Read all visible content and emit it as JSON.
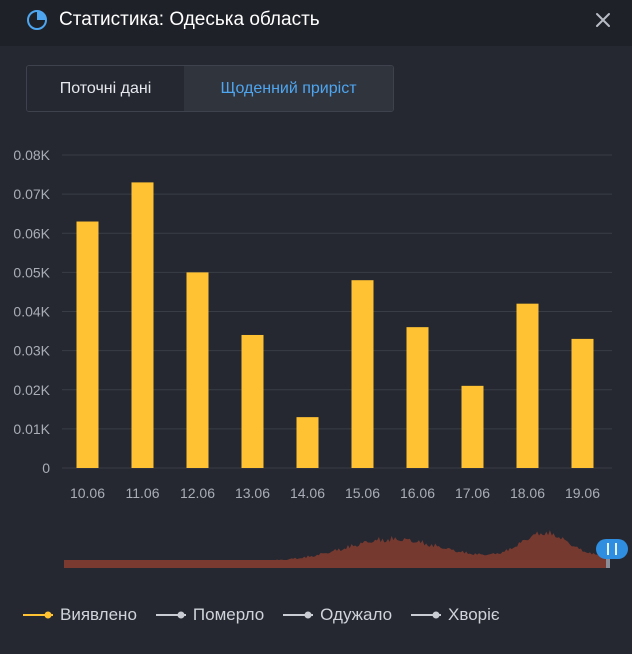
{
  "header": {
    "title": "Статистика: Одеська область",
    "icon": "pie-chart-icon",
    "close_icon": "close-icon",
    "accent": "#4ea6f0"
  },
  "tabs": [
    {
      "label": "Поточні дані",
      "active": false
    },
    {
      "label": "Щоденний приріст",
      "active": true
    }
  ],
  "chart_data": {
    "type": "bar",
    "title": "",
    "xlabel": "",
    "ylabel": "",
    "categories": [
      "10.06",
      "11.06",
      "12.06",
      "13.06",
      "14.06",
      "15.06",
      "16.06",
      "17.06",
      "18.06",
      "19.06"
    ],
    "series": [
      {
        "name": "Виявлено",
        "values": [
          0.063,
          0.073,
          0.05,
          0.034,
          0.013,
          0.048,
          0.036,
          0.021,
          0.042,
          0.033
        ],
        "color": "#ffc233"
      }
    ],
    "yticks": [
      "0",
      "0.01K",
      "0.02K",
      "0.03K",
      "0.04K",
      "0.05K",
      "0.06K",
      "0.07K",
      "0.08K"
    ],
    "ylim": [
      0,
      0.08
    ],
    "grid": true,
    "legend_position": "bottom-left",
    "overview_color": "#7a3a30"
  },
  "legend": [
    {
      "label": "Виявлено",
      "color": "#ffc233",
      "active": true
    },
    {
      "label": "Померло",
      "color": "#c9ccd2",
      "active": false
    },
    {
      "label": "Одужало",
      "color": "#c9ccd2",
      "active": false
    },
    {
      "label": "Хворіє",
      "color": "#c9ccd2",
      "active": false
    }
  ]
}
